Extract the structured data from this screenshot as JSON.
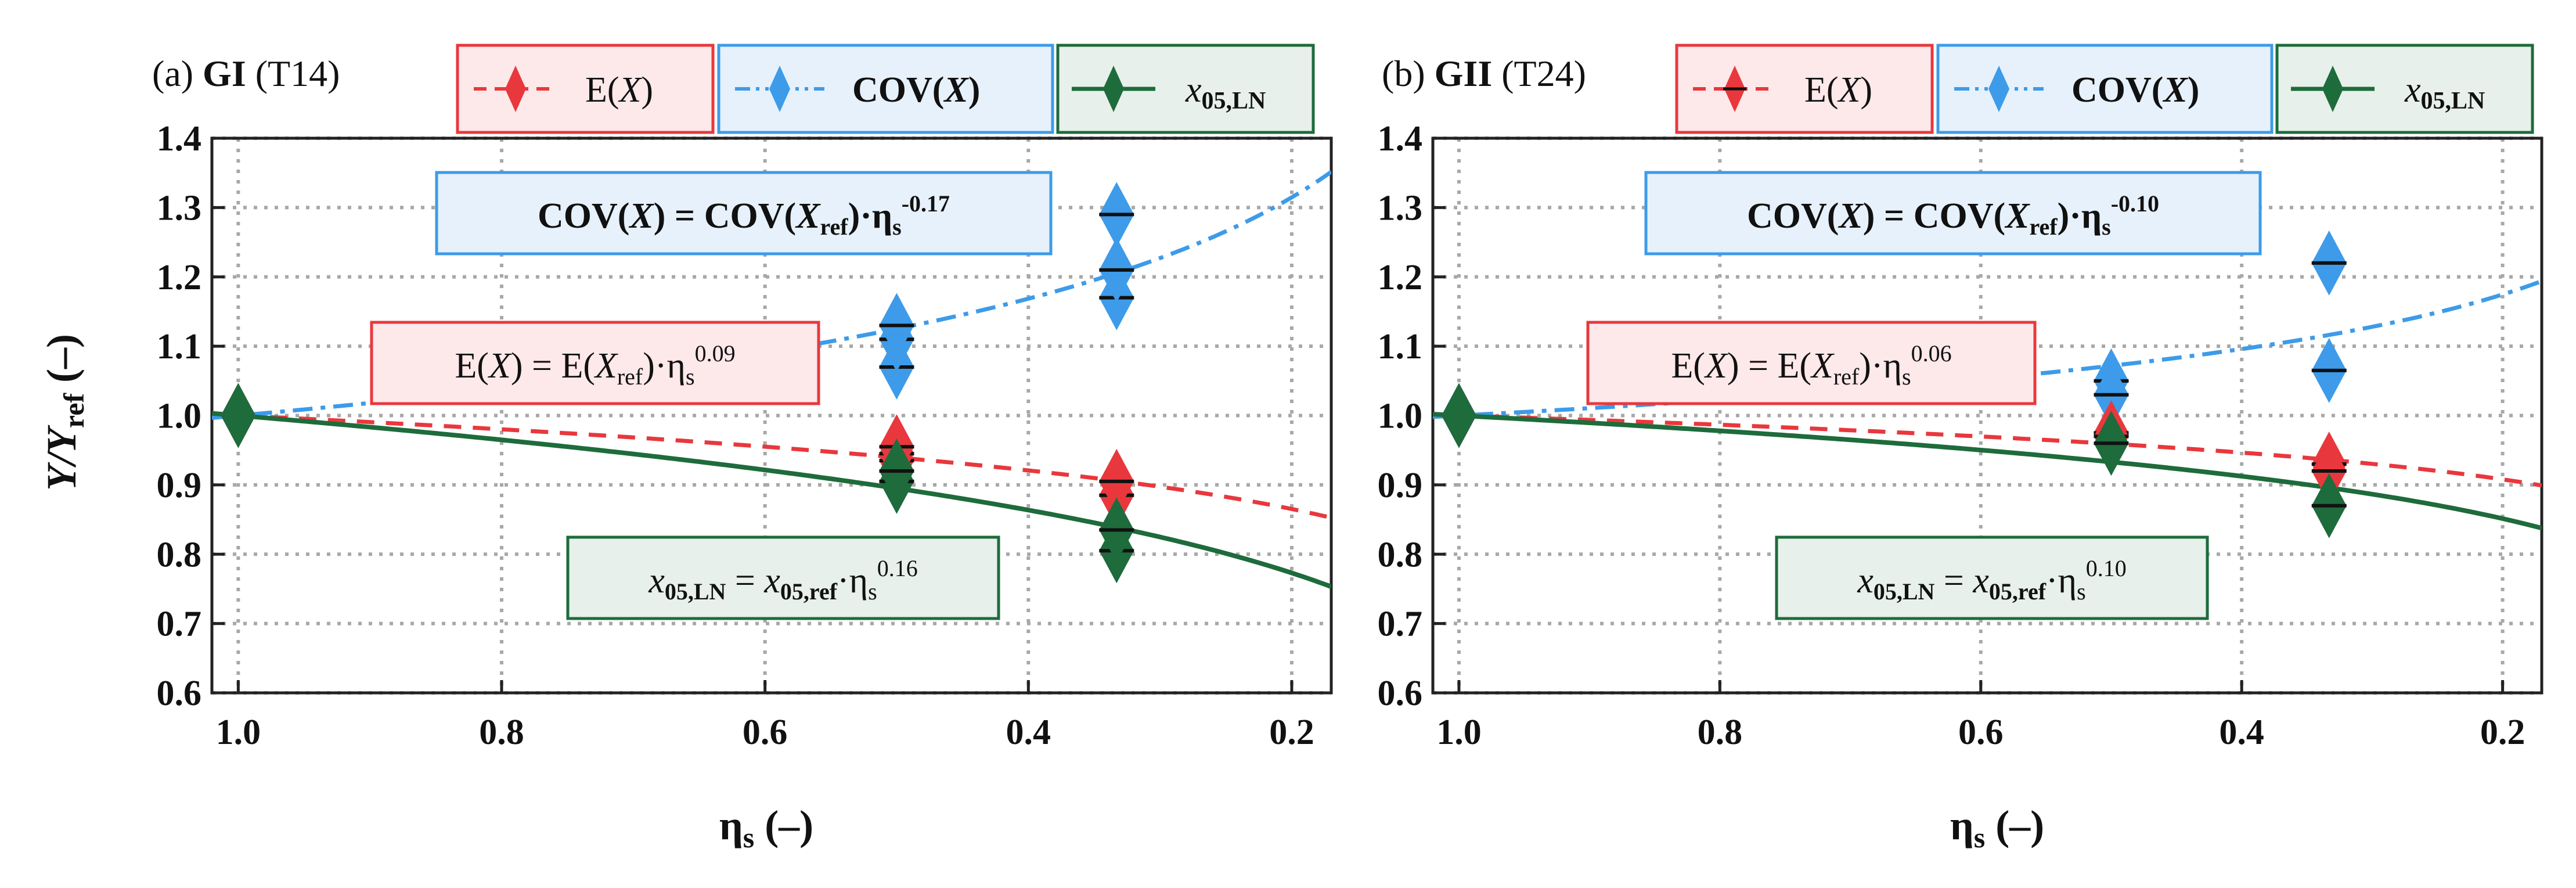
{
  "chart_data": [
    {
      "type": "line",
      "panel_label": "(a)",
      "mode": "GI",
      "test": "(T14)",
      "xlabel": "η",
      "xlabel_sub": "s",
      "xlabel_unit": "(–)",
      "ylabel": "Y/Y",
      "ylabel_sub": "ref",
      "ylabel_unit": "(–)",
      "xlim": [
        1.02,
        0.17
      ],
      "ylim": [
        0.6,
        1.4
      ],
      "x_ticks": [
        1.0,
        0.8,
        0.6,
        0.4,
        0.2
      ],
      "x_tick_labels": [
        "1.0",
        "0.8",
        "0.6",
        "0.4",
        "0.2"
      ],
      "y_ticks": [
        0.6,
        0.7,
        0.8,
        0.9,
        1.0,
        1.1,
        1.2,
        1.3,
        1.4
      ],
      "y_tick_labels": [
        "0.6",
        "0.7",
        "0.8",
        "0.9",
        "1.0",
        "1.1",
        "1.2",
        "1.3",
        "1.4"
      ],
      "grid": true,
      "legend_placement": "top",
      "series": [
        {
          "key": "E",
          "legend": "E(X)",
          "color": "#e8383d",
          "style": "dashed",
          "exponent": 0.09,
          "points": [
            {
              "x": 1.0,
              "y": 1.0
            },
            {
              "x": 0.5,
              "y": 0.935
            },
            {
              "x": 0.5,
              "y": 0.945
            },
            {
              "x": 0.5,
              "y": 0.955
            },
            {
              "x": 0.333,
              "y": 0.885
            },
            {
              "x": 0.333,
              "y": 0.905
            }
          ]
        },
        {
          "key": "COV",
          "legend": "COV(X)",
          "color": "#3d9be9",
          "style": "dashdot",
          "exponent": -0.17,
          "points": [
            {
              "x": 1.0,
              "y": 1.0
            },
            {
              "x": 0.5,
              "y": 1.07
            },
            {
              "x": 0.5,
              "y": 1.11
            },
            {
              "x": 0.5,
              "y": 1.13
            },
            {
              "x": 0.333,
              "y": 1.17
            },
            {
              "x": 0.333,
              "y": 1.21
            },
            {
              "x": 0.333,
              "y": 1.29
            }
          ]
        },
        {
          "key": "X05",
          "legend": "x05,LN",
          "color": "#1e6b3c",
          "style": "solid",
          "exponent": 0.16,
          "points": [
            {
              "x": 1.0,
              "y": 1.0
            },
            {
              "x": 0.5,
              "y": 0.905
            },
            {
              "x": 0.5,
              "y": 0.92
            },
            {
              "x": 0.333,
              "y": 0.805
            },
            {
              "x": 0.333,
              "y": 0.835
            }
          ]
        }
      ],
      "annotations": {
        "cov_formula": {
          "a": "COV(",
          "b": "X",
          "c": ") = COV(",
          "d": "X",
          "e": "ref",
          "f": ")·η",
          "g": "s",
          "h": "-0.17"
        },
        "e_formula": {
          "a": "E(",
          "b": "X",
          "c": ") = E(",
          "d": "X",
          "e": "ref",
          "f": ")·η",
          "g": "s",
          "h": "0.09"
        },
        "x_formula": {
          "a": "x",
          "b": "05,LN",
          "c": " = ",
          "d": "x",
          "e": "05,ref",
          "f": "·η",
          "g": "s",
          "h": "0.16"
        }
      }
    },
    {
      "type": "line",
      "panel_label": "(b)",
      "mode": "GII",
      "test": "(T24)",
      "xlabel": "η",
      "xlabel_sub": "s",
      "xlabel_unit": "(–)",
      "xlim": [
        1.02,
        0.17
      ],
      "ylim": [
        0.6,
        1.4
      ],
      "x_ticks": [
        1.0,
        0.8,
        0.6,
        0.4,
        0.2
      ],
      "x_tick_labels": [
        "1.0",
        "0.8",
        "0.6",
        "0.4",
        "0.2"
      ],
      "y_ticks": [
        0.6,
        0.7,
        0.8,
        0.9,
        1.0,
        1.1,
        1.2,
        1.3,
        1.4
      ],
      "y_tick_labels": [
        "0.6",
        "0.7",
        "0.8",
        "0.9",
        "1.0",
        "1.1",
        "1.2",
        "1.3",
        "1.4"
      ],
      "grid": true,
      "legend_placement": "top",
      "series": [
        {
          "key": "E",
          "legend": "E(X)",
          "color": "#e8383d",
          "style": "dashed",
          "exponent": 0.06,
          "points": [
            {
              "x": 1.0,
              "y": 1.0
            },
            {
              "x": 0.5,
              "y": 0.975
            },
            {
              "x": 0.5,
              "y": 0.97
            },
            {
              "x": 0.333,
              "y": 0.93
            },
            {
              "x": 0.333,
              "y": 0.92
            }
          ]
        },
        {
          "key": "COV",
          "legend": "COV(X)",
          "color": "#3d9be9",
          "style": "dashdot",
          "exponent": -0.1,
          "points": [
            {
              "x": 1.0,
              "y": 1.0
            },
            {
              "x": 0.5,
              "y": 1.05
            },
            {
              "x": 0.5,
              "y": 1.03
            },
            {
              "x": 0.333,
              "y": 1.22
            },
            {
              "x": 0.333,
              "y": 1.065
            }
          ]
        },
        {
          "key": "X05",
          "legend": "x05,LN",
          "color": "#1e6b3c",
          "style": "solid",
          "exponent": 0.1,
          "points": [
            {
              "x": 1.0,
              "y": 1.0
            },
            {
              "x": 0.5,
              "y": 0.96
            },
            {
              "x": 0.333,
              "y": 0.87
            }
          ]
        }
      ],
      "annotations": {
        "cov_formula": {
          "a": "COV(",
          "b": "X",
          "c": ") = COV(",
          "d": "X",
          "e": "ref",
          "f": ")·η",
          "g": "s",
          "h": "-0.10"
        },
        "e_formula": {
          "a": "E(",
          "b": "X",
          "c": ") = E(",
          "d": "X",
          "e": "ref",
          "f": ")·η",
          "g": "s",
          "h": "0.06"
        },
        "x_formula": {
          "a": "x",
          "b": "05,LN",
          "c": " = ",
          "d": "x",
          "e": "05,ref",
          "f": "·η",
          "g": "s",
          "h": "0.10"
        }
      }
    }
  ],
  "legend_text": {
    "e_a": "E(",
    "e_b": "X",
    "e_c": ")",
    "cov_a": "COV(",
    "cov_b": "X",
    "cov_c": ")",
    "x_a": "x",
    "x_b": "05,LN"
  }
}
